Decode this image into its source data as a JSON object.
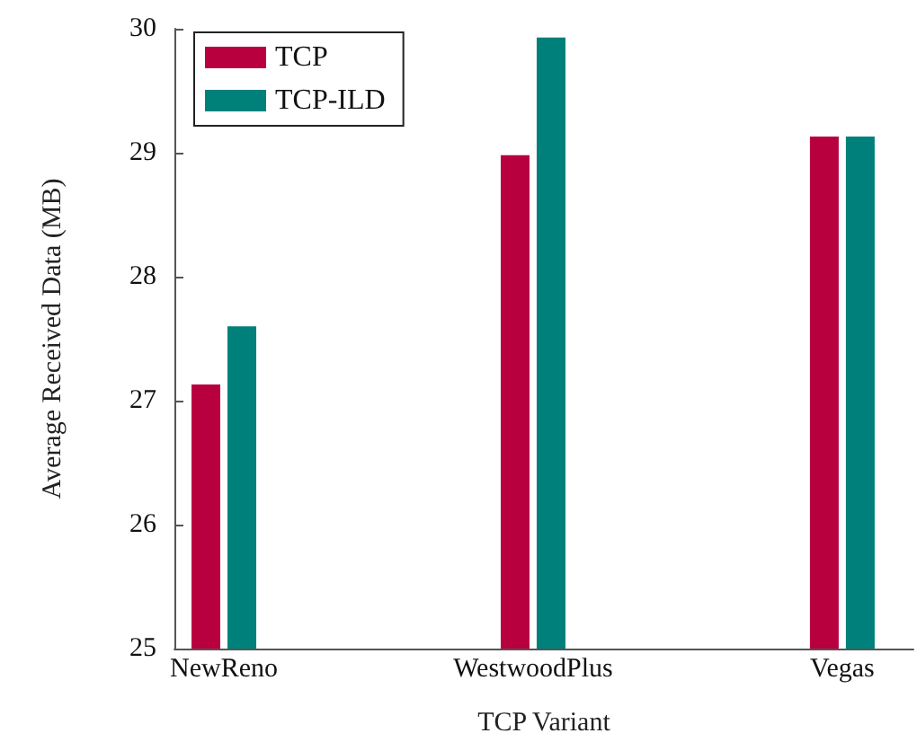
{
  "chart_data": {
    "type": "bar",
    "xlabel": "TCP Variant",
    "ylabel": "Average Received Data (MB)",
    "categories": [
      "NewReno",
      "WestwoodPlus",
      "Vegas"
    ],
    "series": [
      {
        "name": "TCP",
        "color": "#b8003f",
        "values": [
          27.13,
          28.98,
          29.13
        ]
      },
      {
        "name": "TCP-ILD",
        "color": "#00807a",
        "values": [
          27.6,
          29.93,
          29.13
        ]
      }
    ],
    "ylim": [
      25,
      30
    ],
    "yticks": [
      25,
      26,
      27,
      28,
      29,
      30
    ],
    "grid": false,
    "legend": "top left"
  }
}
